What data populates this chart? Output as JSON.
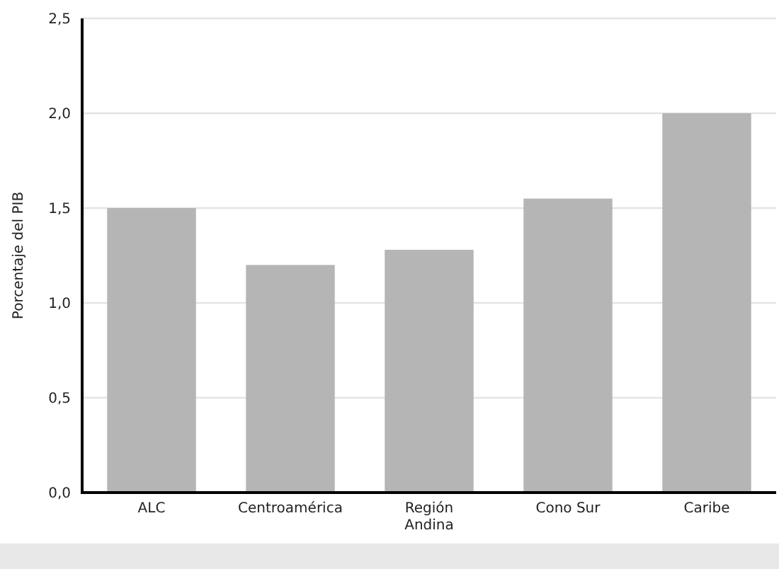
{
  "chart_data": {
    "type": "bar",
    "ylabel": "Porcentaje del PIB",
    "categories": [
      "ALC",
      "Centroamérica",
      "Región\nAndina",
      "Cono Sur",
      "Caribe"
    ],
    "values": [
      1.5,
      1.2,
      1.28,
      1.55,
      2.0
    ],
    "color": "#b5b5b5",
    "ylim": [
      0,
      2.5
    ],
    "yticks": [
      {
        "value": 0,
        "label": "0,0"
      },
      {
        "value": 0.5,
        "label": "0,5"
      },
      {
        "value": 1,
        "label": "1,0"
      },
      {
        "value": 1.5,
        "label": "1,5"
      },
      {
        "value": 2,
        "label": "2,0"
      },
      {
        "value": 2.5,
        "label": "2,5"
      }
    ],
    "grid": "y"
  }
}
